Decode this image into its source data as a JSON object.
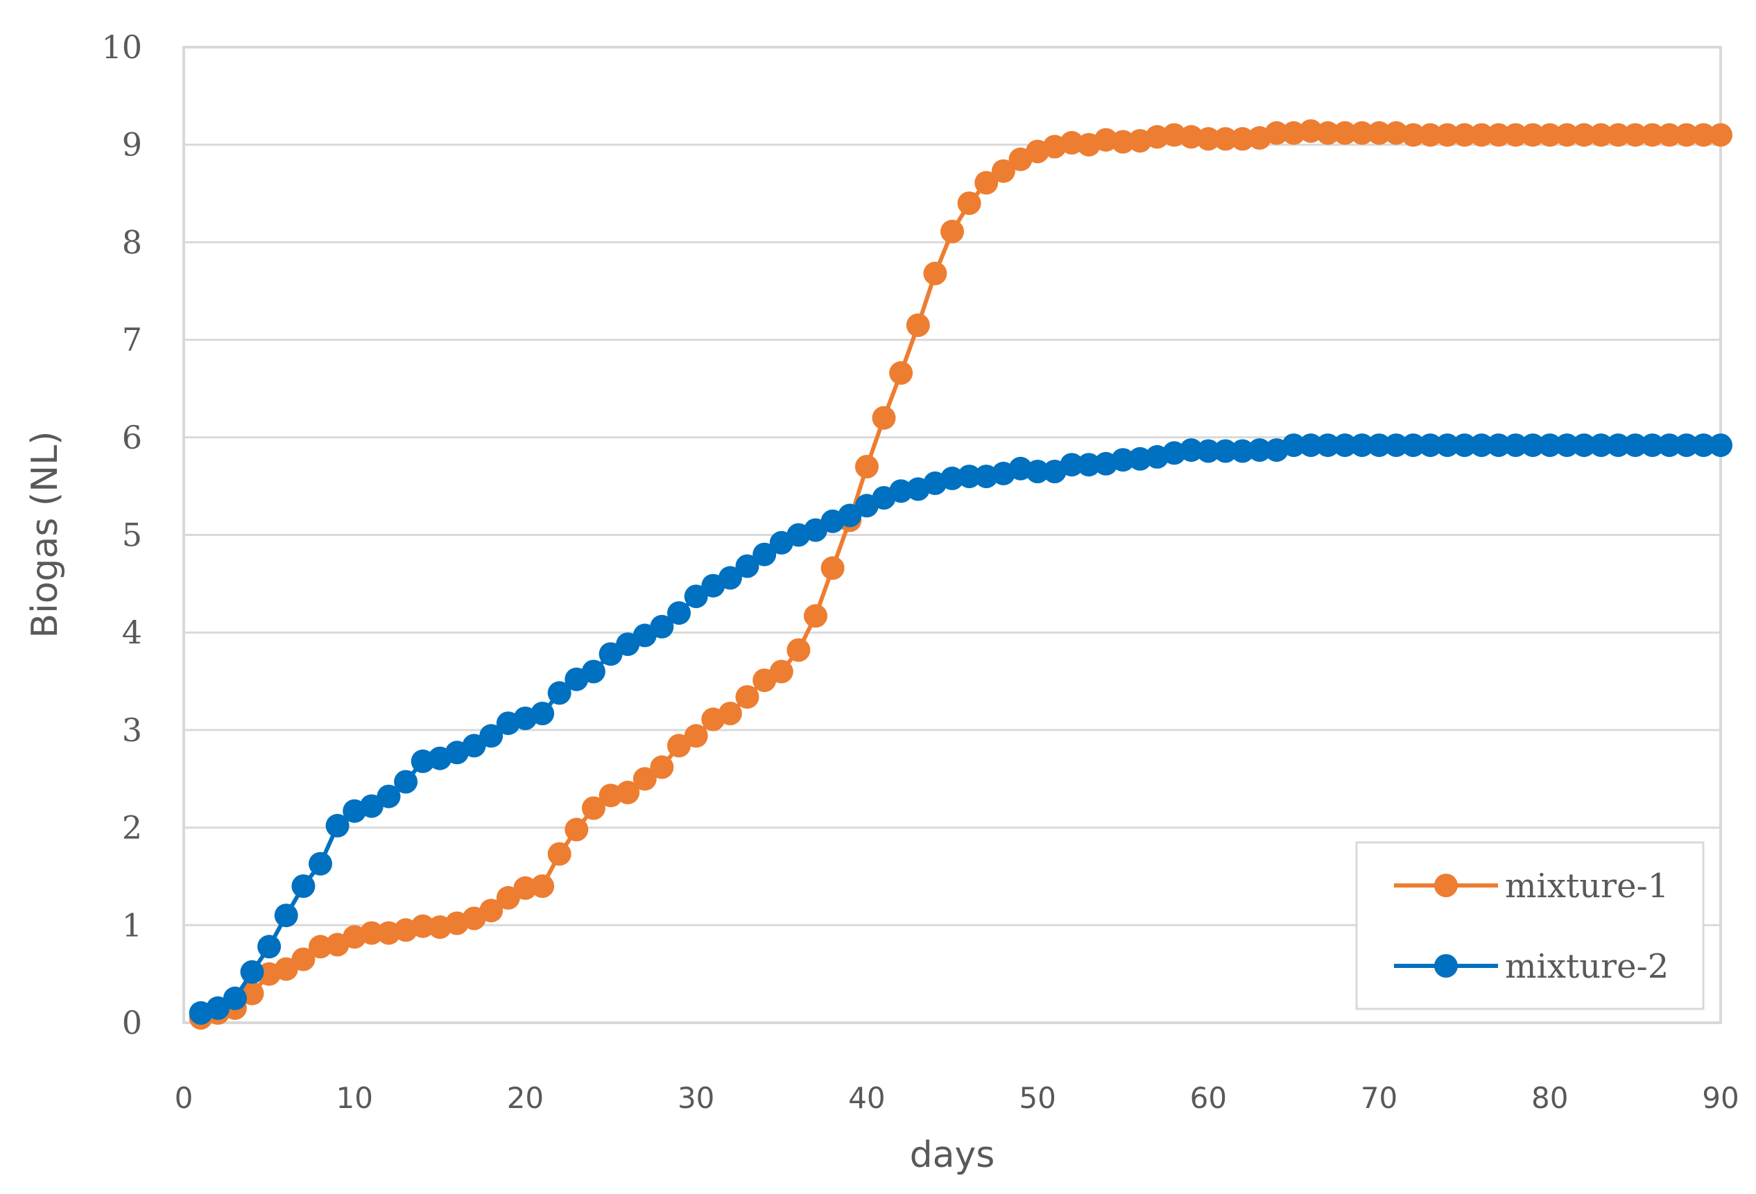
{
  "chart_data": {
    "type": "line",
    "xlabel": "days",
    "ylabel": "Biogas  (NL)",
    "xlim": [
      0,
      90
    ],
    "ylim": [
      0,
      10
    ],
    "xticks": [
      "0",
      "10",
      "20",
      "30",
      "40",
      "50",
      "60",
      "70",
      "80",
      "90"
    ],
    "yticks": [
      "0",
      "1",
      "2",
      "3",
      "4",
      "5",
      "6",
      "7",
      "8",
      "9",
      "10"
    ],
    "grid": "horizontal",
    "legend_position": "bottom-right",
    "x": [
      1,
      2,
      3,
      4,
      5,
      6,
      7,
      8,
      9,
      10,
      11,
      12,
      13,
      14,
      15,
      16,
      17,
      18,
      19,
      20,
      21,
      22,
      23,
      24,
      25,
      26,
      27,
      28,
      29,
      30,
      31,
      32,
      33,
      34,
      35,
      36,
      37,
      38,
      39,
      40,
      41,
      42,
      43,
      44,
      45,
      46,
      47,
      48,
      49,
      50,
      51,
      52,
      53,
      54,
      55,
      56,
      57,
      58,
      59,
      60,
      61,
      62,
      63,
      64,
      65,
      66,
      67,
      68,
      69,
      70,
      71,
      72,
      73,
      74,
      75,
      76,
      77,
      78,
      79,
      80,
      81,
      82,
      83,
      84,
      85,
      86,
      87,
      88,
      89,
      90
    ],
    "series": [
      {
        "name": "mixture-1",
        "color": "#ED7D31",
        "values": [
          0.05,
          0.1,
          0.15,
          0.3,
          0.5,
          0.55,
          0.65,
          0.78,
          0.8,
          0.88,
          0.92,
          0.92,
          0.95,
          0.99,
          0.98,
          1.02,
          1.07,
          1.15,
          1.28,
          1.38,
          1.4,
          1.73,
          1.98,
          2.2,
          2.33,
          2.36,
          2.5,
          2.62,
          2.84,
          2.94,
          3.11,
          3.17,
          3.34,
          3.51,
          3.6,
          3.82,
          4.17,
          4.66,
          5.15,
          5.7,
          6.2,
          6.66,
          7.15,
          7.68,
          8.11,
          8.4,
          8.61,
          8.73,
          8.85,
          8.93,
          8.98,
          9.02,
          9.0,
          9.05,
          9.03,
          9.04,
          9.08,
          9.1,
          9.08,
          9.06,
          9.06,
          9.06,
          9.07,
          9.12,
          9.12,
          9.14,
          9.12,
          9.12,
          9.12,
          9.12,
          9.12,
          9.1,
          9.1,
          9.1,
          9.1,
          9.1,
          9.1,
          9.1,
          9.1,
          9.1,
          9.1,
          9.1,
          9.1,
          9.1,
          9.1,
          9.1,
          9.1,
          9.1,
          9.1,
          9.1
        ]
      },
      {
        "name": "mixture-2",
        "color": "#0070C0",
        "values": [
          0.1,
          0.15,
          0.25,
          0.52,
          0.78,
          1.1,
          1.4,
          1.63,
          2.02,
          2.17,
          2.22,
          2.32,
          2.47,
          2.68,
          2.71,
          2.77,
          2.84,
          2.94,
          3.07,
          3.12,
          3.17,
          3.38,
          3.52,
          3.6,
          3.78,
          3.88,
          3.97,
          4.06,
          4.2,
          4.37,
          4.48,
          4.56,
          4.68,
          4.8,
          4.92,
          5.0,
          5.05,
          5.14,
          5.2,
          5.3,
          5.38,
          5.45,
          5.47,
          5.53,
          5.58,
          5.6,
          5.6,
          5.63,
          5.68,
          5.65,
          5.65,
          5.72,
          5.72,
          5.73,
          5.77,
          5.78,
          5.8,
          5.84,
          5.87,
          5.86,
          5.86,
          5.86,
          5.87,
          5.87,
          5.92,
          5.92,
          5.92,
          5.92,
          5.92,
          5.92,
          5.92,
          5.92,
          5.92,
          5.92,
          5.92,
          5.92,
          5.92,
          5.92,
          5.92,
          5.92,
          5.92,
          5.92,
          5.92,
          5.92,
          5.92,
          5.92,
          5.92,
          5.92,
          5.92,
          5.92
        ]
      }
    ]
  }
}
